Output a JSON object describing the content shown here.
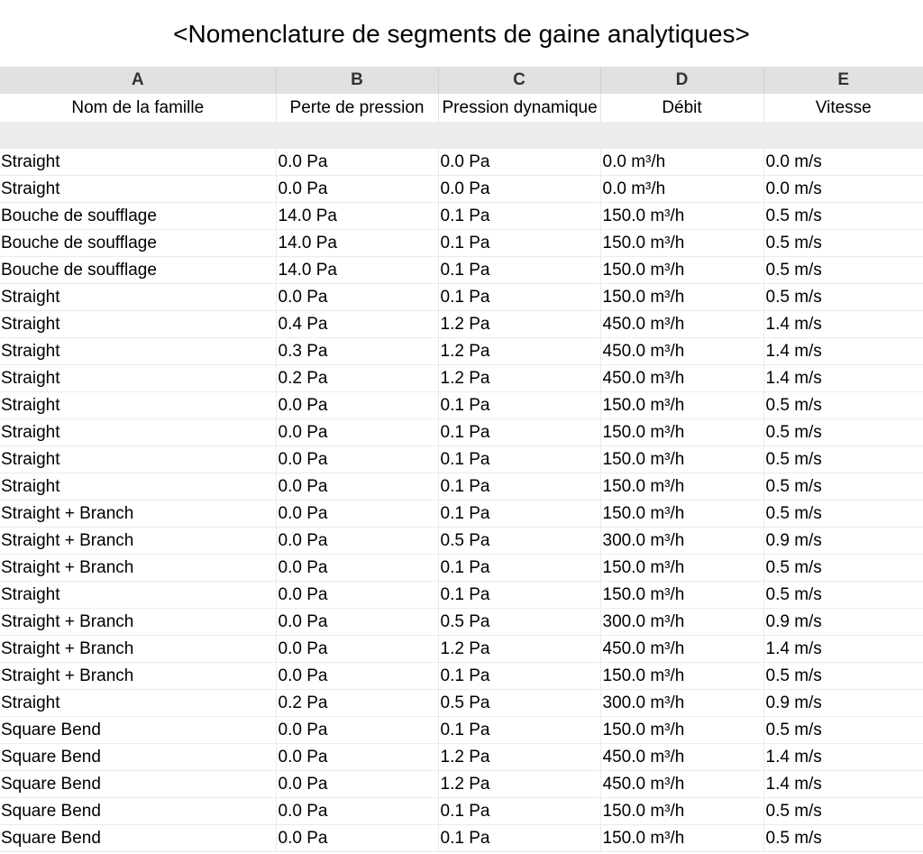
{
  "title": "<Nomenclature de segments de gaine analytiques>",
  "columns": {
    "letters": [
      "A",
      "B",
      "C",
      "D",
      "E"
    ],
    "headers": [
      "Nom de la famille",
      "Perte de pression",
      "Pression dynamique",
      "Débit",
      "Vitesse"
    ]
  },
  "rows": [
    [
      "Straight",
      "0.0 Pa",
      "0.0 Pa",
      "0.0 m³/h",
      "0.0 m/s"
    ],
    [
      "Straight",
      "0.0 Pa",
      "0.0 Pa",
      "0.0 m³/h",
      "0.0 m/s"
    ],
    [
      "Bouche de soufflage",
      "14.0 Pa",
      "0.1 Pa",
      "150.0 m³/h",
      "0.5 m/s"
    ],
    [
      "Bouche de soufflage",
      "14.0 Pa",
      "0.1 Pa",
      "150.0 m³/h",
      "0.5 m/s"
    ],
    [
      "Bouche de soufflage",
      "14.0 Pa",
      "0.1 Pa",
      "150.0 m³/h",
      "0.5 m/s"
    ],
    [
      "Straight",
      "0.0 Pa",
      "0.1 Pa",
      "150.0 m³/h",
      "0.5 m/s"
    ],
    [
      "Straight",
      "0.4 Pa",
      "1.2 Pa",
      "450.0 m³/h",
      "1.4 m/s"
    ],
    [
      "Straight",
      "0.3 Pa",
      "1.2 Pa",
      "450.0 m³/h",
      "1.4 m/s"
    ],
    [
      "Straight",
      "0.2 Pa",
      "1.2 Pa",
      "450.0 m³/h",
      "1.4 m/s"
    ],
    [
      "Straight",
      "0.0 Pa",
      "0.1 Pa",
      "150.0 m³/h",
      "0.5 m/s"
    ],
    [
      "Straight",
      "0.0 Pa",
      "0.1 Pa",
      "150.0 m³/h",
      "0.5 m/s"
    ],
    [
      "Straight",
      "0.0 Pa",
      "0.1 Pa",
      "150.0 m³/h",
      "0.5 m/s"
    ],
    [
      "Straight",
      "0.0 Pa",
      "0.1 Pa",
      "150.0 m³/h",
      "0.5 m/s"
    ],
    [
      "Straight + Branch",
      "0.0 Pa",
      "0.1 Pa",
      "150.0 m³/h",
      "0.5 m/s"
    ],
    [
      "Straight + Branch",
      "0.0 Pa",
      "0.5 Pa",
      "300.0 m³/h",
      "0.9 m/s"
    ],
    [
      "Straight + Branch",
      "0.0 Pa",
      "0.1 Pa",
      "150.0 m³/h",
      "0.5 m/s"
    ],
    [
      "Straight",
      "0.0 Pa",
      "0.1 Pa",
      "150.0 m³/h",
      "0.5 m/s"
    ],
    [
      "Straight + Branch",
      "0.0 Pa",
      "0.5 Pa",
      "300.0 m³/h",
      "0.9 m/s"
    ],
    [
      "Straight + Branch",
      "0.0 Pa",
      "1.2 Pa",
      "450.0 m³/h",
      "1.4 m/s"
    ],
    [
      "Straight + Branch",
      "0.0 Pa",
      "0.1 Pa",
      "150.0 m³/h",
      "0.5 m/s"
    ],
    [
      "Straight",
      "0.2 Pa",
      "0.5 Pa",
      "300.0 m³/h",
      "0.9 m/s"
    ],
    [
      "Square Bend",
      "0.0 Pa",
      "0.1 Pa",
      "150.0 m³/h",
      "0.5 m/s"
    ],
    [
      "Square Bend",
      "0.0 Pa",
      "1.2 Pa",
      "450.0 m³/h",
      "1.4 m/s"
    ],
    [
      "Square Bend",
      "0.0 Pa",
      "1.2 Pa",
      "450.0 m³/h",
      "1.4 m/s"
    ],
    [
      "Square Bend",
      "0.0 Pa",
      "0.1 Pa",
      "150.0 m³/h",
      "0.5 m/s"
    ],
    [
      "Square Bend",
      "0.0 Pa",
      "0.1 Pa",
      "150.0 m³/h",
      "0.5 m/s"
    ]
  ]
}
